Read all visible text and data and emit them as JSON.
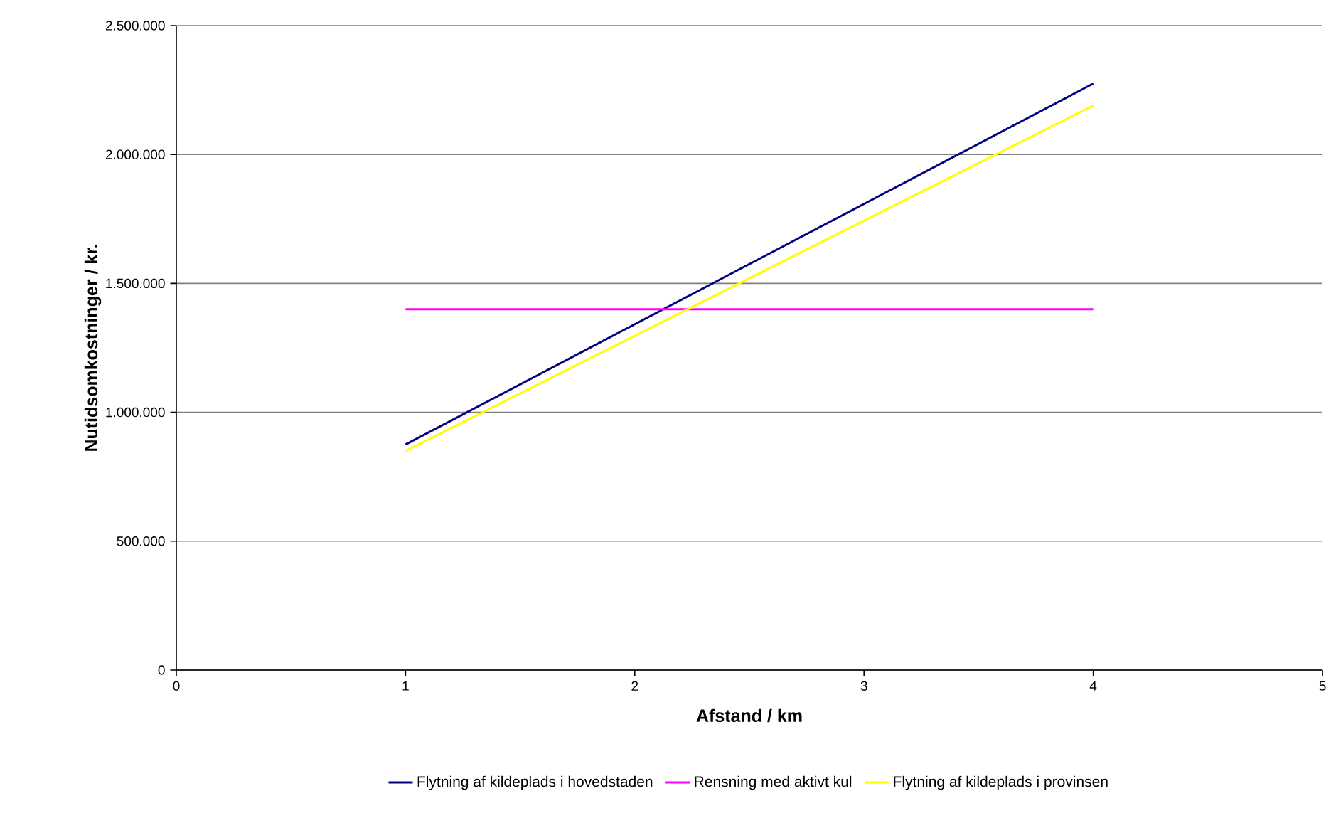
{
  "chart_data": {
    "type": "line",
    "xlabel": "Afstand / km",
    "ylabel": "Nutidsomkostninger / kr.",
    "x": [
      1,
      4
    ],
    "xlim": [
      0,
      5
    ],
    "xticks": [
      0,
      1,
      2,
      3,
      4,
      5
    ],
    "ylim": [
      0,
      2500000
    ],
    "yticks": [
      {
        "value": 0,
        "label": "0"
      },
      {
        "value": 500000,
        "label": "500.000"
      },
      {
        "value": 1000000,
        "label": "1.000.000"
      },
      {
        "value": 1500000,
        "label": "1.500.000"
      },
      {
        "value": 2000000,
        "label": "2.000.000"
      },
      {
        "value": 2500000,
        "label": "2.500.000"
      }
    ],
    "grid": "y",
    "legend": "bottom",
    "marker": "none",
    "line_style": "solid",
    "series": [
      {
        "name": "Flytning af kildeplads i hovedstaden",
        "color": "#000080",
        "values": [
          875000,
          2275000
        ]
      },
      {
        "name": "Rensning med aktivt kul",
        "color": "#ff00ff",
        "values": [
          1400000,
          1400000
        ]
      },
      {
        "name": "Flytning af kildeplads i provinsen",
        "color": "#ffff00",
        "values": [
          850000,
          2190000
        ]
      }
    ]
  }
}
